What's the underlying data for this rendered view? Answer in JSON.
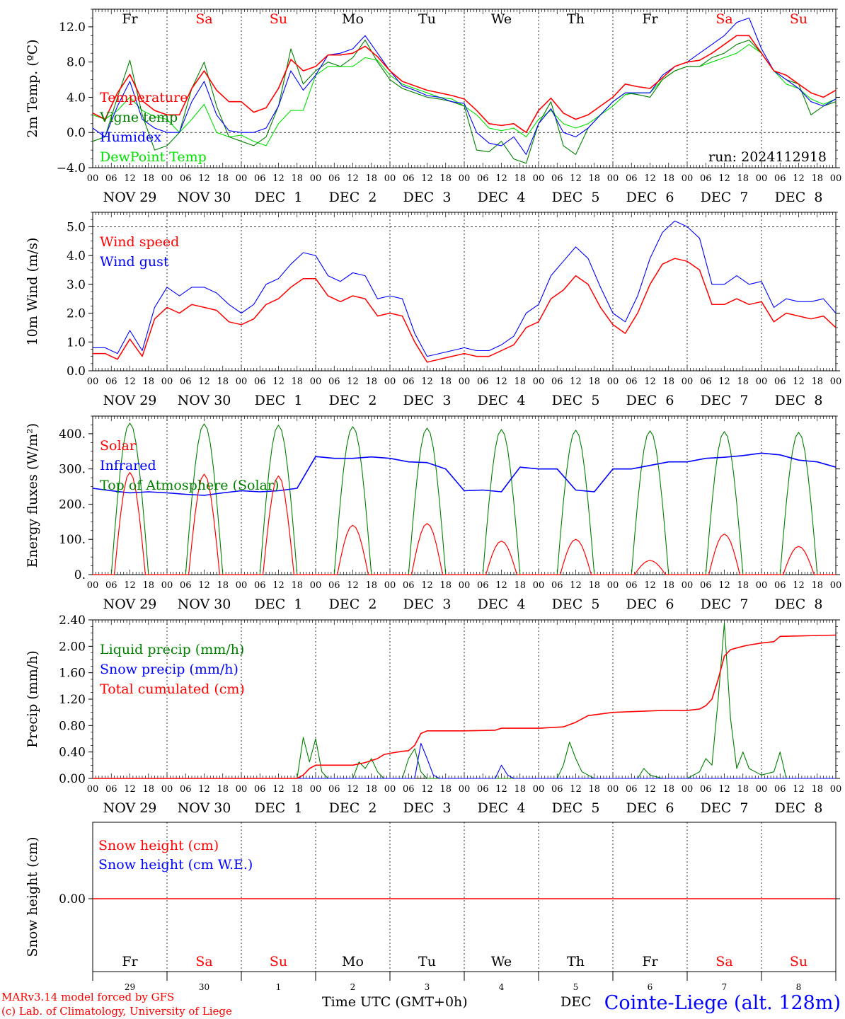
{
  "meteogram": {
    "run_label": "run: 2024112918",
    "day_names": [
      {
        "label": "Fr",
        "weekend": false
      },
      {
        "label": "Sa",
        "weekend": true
      },
      {
        "label": "Su",
        "weekend": true
      },
      {
        "label": "Mo",
        "weekend": false
      },
      {
        "label": "Tu",
        "weekend": false
      },
      {
        "label": "We",
        "weekend": false
      },
      {
        "label": "Th",
        "weekend": false
      },
      {
        "label": "Fr",
        "weekend": false
      },
      {
        "label": "Sa",
        "weekend": true
      },
      {
        "label": "Su",
        "weekend": true
      }
    ],
    "hour_ticks": [
      "00",
      "06",
      "12",
      "18"
    ],
    "date_labels": [
      "NOV 29",
      "NOV 30",
      "DEC  1",
      "DEC  2",
      "DEC  3",
      "DEC  4",
      "DEC  5",
      "DEC  6",
      "DEC  7",
      "DEC  8"
    ],
    "day_numbers": [
      "29",
      "30",
      "1",
      "2",
      "3",
      "4",
      "5",
      "6",
      "7",
      "8"
    ],
    "bottom_month_label": "DEC",
    "colors": {
      "red": "#ff0000",
      "blue": "#0000ff",
      "green": "#007f00",
      "lightgreen": "#00e000",
      "black": "#000000",
      "weekend": "#ff0000"
    }
  },
  "chart_data": [
    {
      "type": "line",
      "ylabel": "2m Temp. (ºC)",
      "ylim": [
        -4,
        14
      ],
      "yticks": [
        "−4.0",
        "0.0",
        "4.0",
        "8.0",
        "12.0"
      ],
      "ytick_values": [
        -4,
        0,
        4,
        8,
        12
      ],
      "reference_line": 0,
      "x_hours": [
        0,
        4,
        8,
        12,
        16,
        20,
        24,
        28,
        32,
        36,
        40,
        44,
        48,
        52,
        56,
        60,
        64,
        68,
        72,
        76,
        80,
        84,
        88,
        92,
        96,
        100,
        104,
        108,
        112,
        116,
        120,
        124,
        128,
        132,
        136,
        140,
        144,
        148,
        152,
        156,
        160,
        164,
        168,
        172,
        176,
        180,
        184,
        188,
        192,
        196,
        200,
        204,
        208,
        212,
        216,
        220,
        224,
        228,
        232,
        236,
        240
      ],
      "series": [
        {
          "name": "Temperature",
          "color": "#ff0000",
          "values": [
            2.2,
            1.5,
            4.5,
            6.6,
            3.6,
            2.5,
            2.0,
            2.0,
            5.0,
            7.0,
            4.8,
            3.5,
            3.5,
            2.3,
            2.8,
            5.0,
            8.3,
            7.0,
            7.5,
            8.8,
            8.8,
            9.0,
            9.8,
            8.6,
            7.0,
            5.8,
            5.3,
            4.8,
            4.5,
            4.2,
            3.8,
            2.5,
            1.0,
            0.8,
            1.0,
            0.0,
            2.5,
            3.9,
            2.2,
            1.5,
            2.0,
            3.0,
            4.0,
            5.5,
            5.2,
            5.0,
            6.2,
            7.5,
            8.0,
            8.2,
            9.0,
            10.0,
            11.0,
            11.0,
            9.0,
            7.0,
            6.5,
            5.5,
            4.5,
            4.0,
            4.8
          ]
        },
        {
          "name": "Vigne temp",
          "color": "#007f00",
          "values": [
            -1.0,
            -0.5,
            4.0,
            8.2,
            2.0,
            -2.0,
            -1.5,
            0.0,
            5.0,
            8.0,
            3.0,
            -0.5,
            -1.0,
            -1.5,
            -0.5,
            3.0,
            9.5,
            5.5,
            7.0,
            8.0,
            7.5,
            8.5,
            10.5,
            8.0,
            6.0,
            5.0,
            4.5,
            4.0,
            3.8,
            3.5,
            3.0,
            -2.0,
            -2.2,
            -1.0,
            -3.0,
            -3.5,
            1.0,
            3.5,
            -1.5,
            -2.5,
            0.5,
            2.0,
            3.5,
            4.5,
            4.3,
            4.0,
            6.0,
            7.0,
            7.5,
            7.5,
            8.5,
            9.0,
            10.0,
            10.5,
            9.0,
            7.0,
            6.0,
            5.5,
            2.0,
            3.0,
            3.5
          ]
        },
        {
          "name": "Humidex",
          "color": "#0000ff",
          "values": [
            0.5,
            -0.5,
            3.0,
            5.8,
            1.5,
            0.5,
            0.0,
            0.0,
            3.5,
            5.8,
            2.0,
            0.2,
            0.0,
            0.0,
            0.5,
            3.0,
            7.0,
            4.8,
            6.5,
            8.8,
            9.0,
            9.5,
            11.0,
            9.0,
            7.0,
            5.3,
            4.8,
            4.2,
            4.0,
            3.5,
            3.3,
            0.0,
            -1.2,
            -1.5,
            -0.5,
            -2.5,
            1.0,
            2.7,
            0.0,
            -0.5,
            0.5,
            2.0,
            3.5,
            4.5,
            4.5,
            4.5,
            6.5,
            7.5,
            8.0,
            9.0,
            10.0,
            11.0,
            12.5,
            13.0,
            9.5,
            7.0,
            6.0,
            5.0,
            3.5,
            3.0,
            3.8
          ]
        },
        {
          "name": "DewPoint Temp",
          "color": "#00e000",
          "values": [
            2.0,
            1.5,
            2.5,
            4.0,
            2.5,
            1.8,
            1.5,
            0.0,
            1.5,
            3.2,
            0.0,
            -0.5,
            -0.3,
            -1.0,
            -1.5,
            1.0,
            2.5,
            2.5,
            6.5,
            7.5,
            7.5,
            7.5,
            8.5,
            8.2,
            6.5,
            5.5,
            5.0,
            4.5,
            4.0,
            3.8,
            3.0,
            2.0,
            0.5,
            0.2,
            0.5,
            -0.5,
            1.5,
            2.5,
            1.0,
            0.5,
            1.0,
            2.0,
            3.0,
            4.3,
            4.5,
            4.5,
            6.0,
            7.0,
            7.5,
            7.5,
            8.0,
            8.5,
            9.0,
            10.0,
            9.0,
            7.0,
            5.5,
            5.0,
            3.8,
            3.2,
            3.8
          ]
        }
      ]
    },
    {
      "type": "line",
      "ylabel": "10m Wind (m/s)",
      "ylim": [
        0,
        5.5
      ],
      "yticks": [
        "0.0",
        "1.0",
        "2.0",
        "3.0",
        "4.0",
        "5.0"
      ],
      "ytick_values": [
        0,
        1,
        2,
        3,
        4,
        5
      ],
      "reference_line": 5,
      "x_hours": [
        0,
        4,
        8,
        12,
        16,
        20,
        24,
        28,
        32,
        36,
        40,
        44,
        48,
        52,
        56,
        60,
        64,
        68,
        72,
        76,
        80,
        84,
        88,
        92,
        96,
        100,
        104,
        108,
        112,
        116,
        120,
        124,
        128,
        132,
        136,
        140,
        144,
        148,
        152,
        156,
        160,
        164,
        168,
        172,
        176,
        180,
        184,
        188,
        192,
        196,
        200,
        204,
        208,
        212,
        216,
        220,
        224,
        228,
        232,
        236,
        240
      ],
      "series": [
        {
          "name": "Wind speed",
          "color": "#ff0000",
          "values": [
            0.6,
            0.6,
            0.4,
            1.1,
            0.5,
            1.8,
            2.2,
            2.0,
            2.3,
            2.2,
            2.1,
            1.7,
            1.6,
            1.8,
            2.3,
            2.5,
            2.9,
            3.2,
            3.2,
            2.6,
            2.4,
            2.6,
            2.5,
            1.9,
            2.0,
            1.9,
            1.0,
            0.3,
            0.4,
            0.5,
            0.6,
            0.5,
            0.5,
            0.7,
            0.9,
            1.5,
            1.7,
            2.5,
            2.8,
            3.3,
            3.0,
            2.2,
            1.6,
            1.3,
            2.0,
            3.0,
            3.7,
            3.9,
            3.8,
            3.5,
            2.3,
            2.3,
            2.5,
            2.3,
            2.4,
            1.7,
            2.0,
            1.9,
            1.8,
            1.9,
            1.5
          ]
        },
        {
          "name": "Wind gust",
          "color": "#0000ff",
          "values": [
            0.8,
            0.8,
            0.6,
            1.4,
            0.7,
            2.2,
            2.9,
            2.6,
            2.9,
            2.9,
            2.7,
            2.3,
            2.0,
            2.3,
            3.0,
            3.2,
            3.7,
            4.1,
            4.0,
            3.3,
            3.1,
            3.4,
            3.3,
            2.5,
            2.6,
            2.5,
            1.3,
            0.5,
            0.6,
            0.7,
            0.8,
            0.7,
            0.7,
            0.9,
            1.2,
            2.0,
            2.3,
            3.3,
            3.8,
            4.3,
            3.9,
            2.9,
            2.0,
            1.7,
            2.6,
            3.9,
            4.8,
            5.2,
            5.0,
            4.6,
            3.0,
            3.0,
            3.3,
            3.0,
            3.1,
            2.2,
            2.5,
            2.4,
            2.4,
            2.5,
            2.0
          ]
        }
      ]
    },
    {
      "type": "line",
      "ylabel": "Energy fluxes (W/m²)",
      "ylim": [
        0,
        450
      ],
      "yticks": [
        "0.",
        "100.",
        "200.",
        "300.",
        "400."
      ],
      "ytick_values": [
        0,
        100,
        200,
        300,
        400
      ],
      "series": [
        {
          "name": "Solar",
          "color": "#ff0000",
          "peak_hour_of_day": 12,
          "half_width_hours": 5,
          "daily_peaks": [
            290,
            285,
            280,
            140,
            145,
            95,
            100,
            40,
            115,
            80
          ]
        },
        {
          "name": "Infrared",
          "color": "#0000ff",
          "x_hours": [
            0,
            6,
            12,
            18,
            24,
            30,
            36,
            42,
            48,
            54,
            60,
            66,
            72,
            78,
            84,
            90,
            96,
            102,
            108,
            114,
            120,
            126,
            132,
            138,
            144,
            150,
            156,
            162,
            168,
            174,
            180,
            186,
            192,
            198,
            204,
            210,
            216,
            222,
            228,
            234,
            240
          ],
          "values": [
            245,
            238,
            232,
            235,
            232,
            228,
            225,
            232,
            238,
            235,
            238,
            245,
            335,
            330,
            330,
            334,
            330,
            320,
            318,
            300,
            238,
            240,
            235,
            305,
            300,
            300,
            240,
            235,
            300,
            300,
            310,
            320,
            320,
            330,
            333,
            338,
            345,
            340,
            325,
            320,
            305
          ]
        },
        {
          "name": "Top of Atmosphere (Solar)",
          "color": "#007f00",
          "peak_hour_of_day": 12,
          "half_width_hours": 6,
          "daily_peaks": [
            430,
            428,
            424,
            420,
            416,
            412,
            410,
            408,
            406,
            404
          ]
        }
      ]
    },
    {
      "type": "line",
      "ylabel": "Precip (mm/h)",
      "ylim": [
        0,
        2.4
      ],
      "yticks": [
        "0.00",
        "0.40",
        "0.80",
        "1.20",
        "1.60",
        "2.00",
        "2.40"
      ],
      "ytick_values": [
        0,
        0.4,
        0.8,
        1.2,
        1.6,
        2.0,
        2.4
      ],
      "series": [
        {
          "name": "Liquid precip (mm/h)",
          "color": "#007f00",
          "x_hours": [
            0,
            66,
            68,
            70,
            72,
            74,
            76,
            78,
            84,
            86,
            88,
            90,
            92,
            94,
            96,
            100,
            102,
            104,
            106,
            108,
            112,
            144,
            150,
            152,
            154,
            156,
            158,
            162,
            176,
            178,
            180,
            184,
            192,
            196,
            198,
            200,
            202,
            204,
            206,
            208,
            210,
            212,
            214,
            216,
            220,
            222,
            224,
            240
          ],
          "values": [
            0,
            0,
            0.62,
            0.25,
            0.6,
            0.1,
            0,
            0,
            0,
            0.25,
            0.15,
            0.3,
            0.1,
            0,
            0,
            0,
            0.3,
            0.45,
            0.1,
            0,
            0,
            0,
            0,
            0.2,
            0.55,
            0.3,
            0.1,
            0,
            0,
            0.15,
            0.05,
            0,
            0,
            0.1,
            0.3,
            0.2,
            1.2,
            2.35,
            0.9,
            0.15,
            0.4,
            0.15,
            0.1,
            0.05,
            0.1,
            0.4,
            0,
            0
          ]
        },
        {
          "name": "Snow precip (mm/h)",
          "color": "#0000ff",
          "x_hours": [
            0,
            104,
            106,
            108,
            110,
            112,
            130,
            132,
            134,
            136,
            240
          ],
          "values": [
            0,
            0,
            0.53,
            0.3,
            0.05,
            0,
            0,
            0.2,
            0.05,
            0,
            0
          ]
        },
        {
          "name": "Total cumulated (cm)",
          "color": "#ff0000",
          "x_hours": [
            0,
            66,
            68,
            70,
            72,
            84,
            88,
            92,
            94,
            96,
            100,
            102,
            104,
            106,
            108,
            120,
            130,
            132,
            144,
            152,
            156,
            160,
            168,
            184,
            192,
            196,
            198,
            200,
            202,
            204,
            206,
            210,
            212,
            216,
            220,
            222,
            240
          ],
          "values": [
            0,
            0,
            0.05,
            0.15,
            0.2,
            0.2,
            0.24,
            0.3,
            0.36,
            0.38,
            0.41,
            0.42,
            0.5,
            0.68,
            0.72,
            0.72,
            0.73,
            0.76,
            0.76,
            0.78,
            0.85,
            0.95,
            1.0,
            1.03,
            1.03,
            1.05,
            1.1,
            1.2,
            1.5,
            1.85,
            1.95,
            2.0,
            2.02,
            2.05,
            2.07,
            2.15,
            2.17
          ]
        }
      ]
    },
    {
      "type": "line",
      "ylabel": "Snow height (cm)",
      "yticks": [
        "0.00"
      ],
      "series": [
        {
          "name": "Snow height (cm)",
          "color": "#ff0000",
          "values": [
            0,
            0
          ]
        },
        {
          "name": "Snow height (cm W.E.)",
          "color": "#0000ff",
          "values": [
            0,
            0
          ]
        }
      ]
    }
  ],
  "footer": {
    "x_axis_label": "Time UTC (GMT+0h)",
    "credit_line1": "MARv3.14 model forced by GFS",
    "credit_line2": "(c) Lab. of Climatology, University of Liege",
    "station": "Cointe-Liege (alt. 128m)"
  }
}
